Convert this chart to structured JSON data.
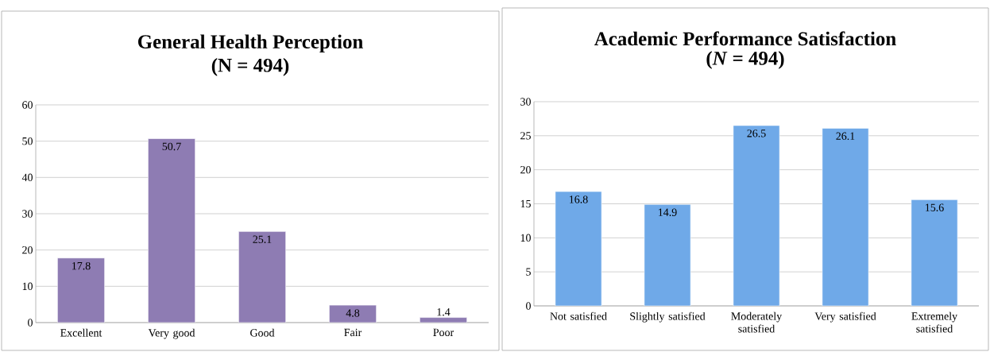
{
  "chart_data": [
    {
      "type": "bar",
      "title": "General Health Perception",
      "subtitle": "(N = 494)",
      "categories": [
        "Excellent",
        "Very good",
        "Good",
        "Fair",
        "Poor"
      ],
      "values": [
        17.8,
        50.7,
        25.1,
        4.8,
        1.4
      ],
      "color": "#8e7cb3",
      "ylim": [
        0,
        60
      ],
      "yticks": [
        0,
        10,
        20,
        30,
        40,
        50,
        60
      ],
      "grid": "y",
      "data_labels": true
    },
    {
      "type": "bar",
      "title": "Academic Performance Satisfaction",
      "subtitle": "(*N* = 494)",
      "categories": [
        "Not satisfied",
        "Slightly satisfied",
        "Moderately satisfied",
        "Very satisfied",
        "Extremely satisfied"
      ],
      "values": [
        16.8,
        14.9,
        26.5,
        26.1,
        15.6
      ],
      "color": "#6fa9e8",
      "ylim": [
        0,
        30
      ],
      "yticks": [
        0,
        5,
        10,
        15,
        20,
        25,
        30
      ],
      "grid": "y",
      "data_labels": true
    }
  ]
}
